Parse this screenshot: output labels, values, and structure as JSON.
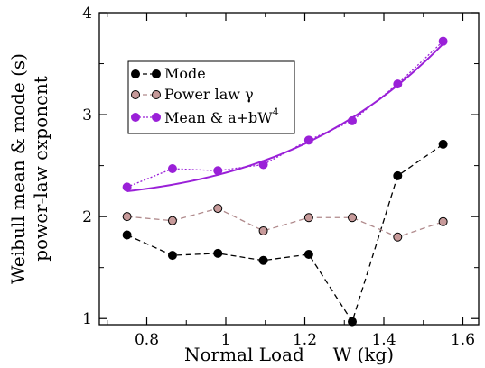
{
  "chart_data": {
    "type": "line",
    "xlabel": "Normal Load     W (kg)",
    "ylabel_line1": "Weibull mean & mode (s)",
    "ylabel_line2": "power-law exponent",
    "xlim": [
      0.68,
      1.64
    ],
    "ylim": [
      0.94,
      4.0
    ],
    "xticks": [
      0.8,
      1.0,
      1.2,
      1.4,
      1.6
    ],
    "xtick_labels": [
      "0.8",
      "1",
      "1.2",
      "1.4",
      "1.6"
    ],
    "yticks": [
      1,
      2,
      3,
      4
    ],
    "ytick_labels": [
      "1",
      "2",
      "3",
      "4"
    ],
    "x": [
      0.75,
      0.865,
      0.98,
      1.095,
      1.21,
      1.32,
      1.435,
      1.55
    ],
    "grid": false,
    "legend_position": "upper-left",
    "series": [
      {
        "name": "Mode",
        "color": "#000000",
        "marker_fill": "#000000",
        "line_style": "dashed",
        "values": [
          1.82,
          1.62,
          1.64,
          1.57,
          1.63,
          0.97,
          2.4,
          2.71
        ]
      },
      {
        "name": "Power law γ",
        "color": "#b08a8c",
        "marker_fill": "#c79a9a",
        "marker_stroke": "#000000",
        "line_style": "dashed",
        "values": [
          2.0,
          1.96,
          2.08,
          1.86,
          1.99,
          1.99,
          1.8,
          1.95
        ]
      },
      {
        "name": "Mean & a+bW",
        "name_superscript": "4",
        "color": "#9a20d8",
        "marker_fill": "#9a20d8",
        "line_style": "dotted",
        "values": [
          2.29,
          2.47,
          2.45,
          2.51,
          2.75,
          2.94,
          3.3,
          3.72
        ]
      }
    ],
    "fit_curve": {
      "color": "#9a20d8",
      "formula": "a+bW^4",
      "a": 2.165,
      "b": 0.265,
      "x_range": [
        0.75,
        1.55
      ]
    }
  }
}
